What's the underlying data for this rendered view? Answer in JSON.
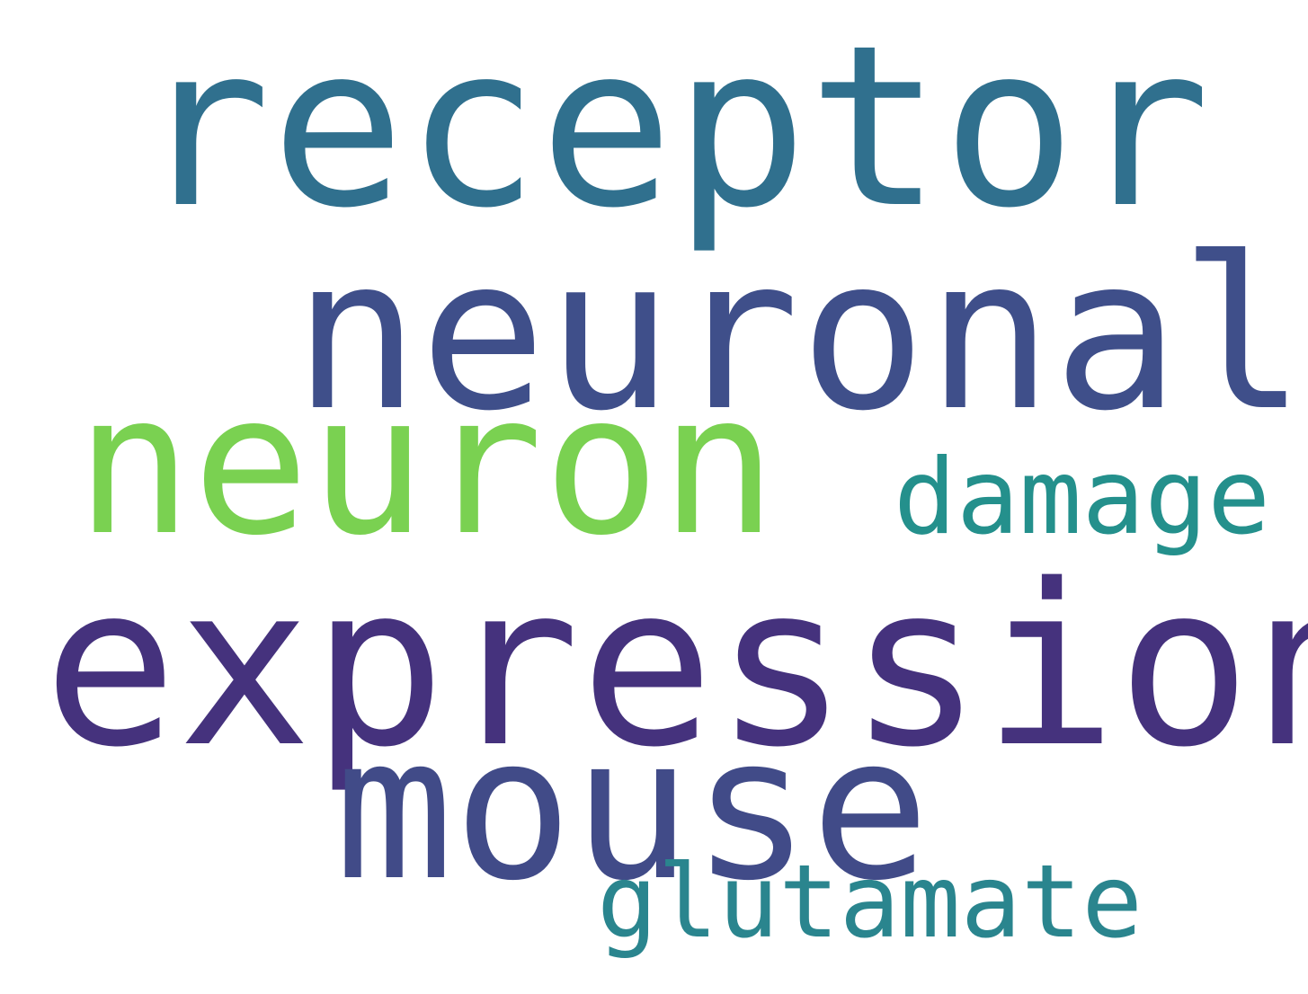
{
  "words": [
    {
      "text": "receptor",
      "color": "#30708e"
    },
    {
      "text": "neuronal",
      "color": "#3f4f8a"
    },
    {
      "text": "neuron",
      "color": "#7ad151"
    },
    {
      "text": "damage",
      "color": "#24908c"
    },
    {
      "text": "expression",
      "color": "#45327d"
    },
    {
      "text": "mouse",
      "color": "#414b88"
    },
    {
      "text": "glutamate",
      "color": "#2a858e"
    }
  ]
}
